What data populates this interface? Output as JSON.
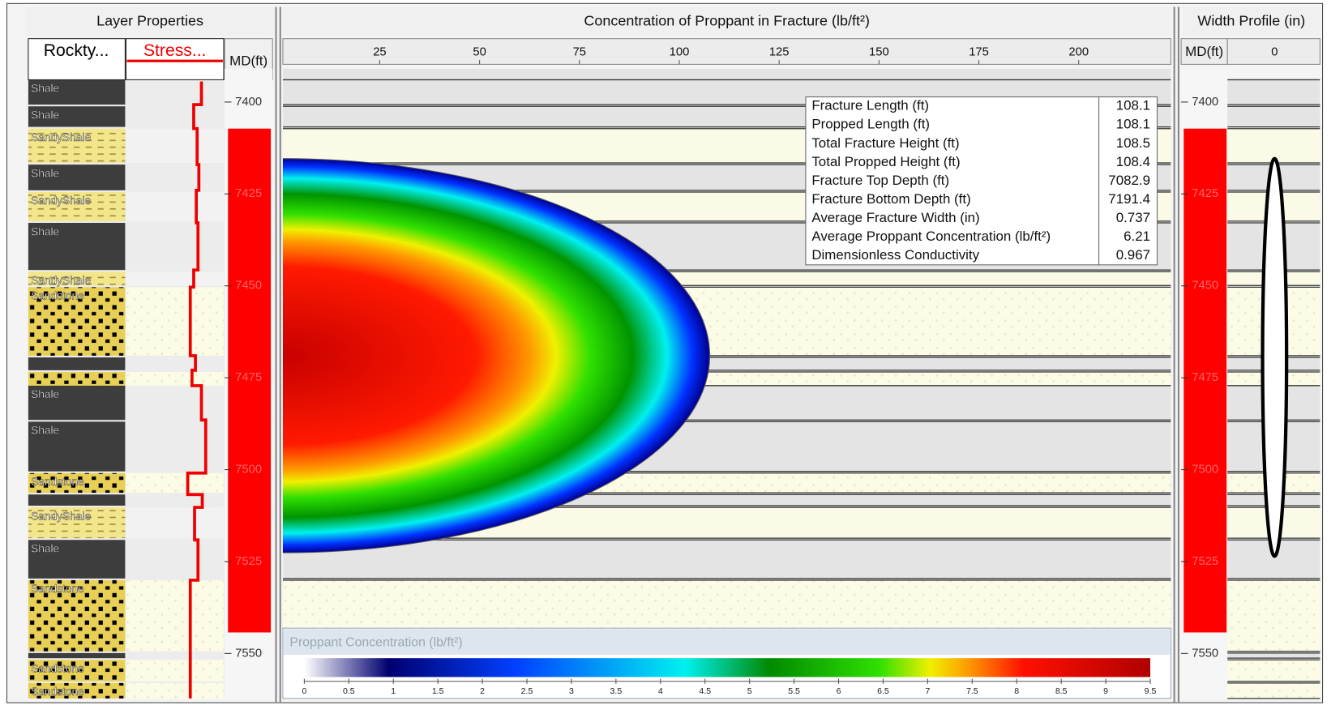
{
  "layer_panel": {
    "title": "Layer Properties",
    "columns": [
      "Rockty...",
      "Stress..."
    ],
    "depth_label": "MD(ft)"
  },
  "concentration_panel": {
    "title": "Concentration of Proppant in Fracture (lb/ft²)",
    "x_ticks": [
      25,
      50,
      75,
      100,
      125,
      150,
      175,
      200
    ]
  },
  "width_panel": {
    "title": "Width Profile (in)",
    "depth_label": "MD(ft)",
    "x_ticks": [
      0
    ]
  },
  "depth_ticks": [
    7400,
    7425,
    7450,
    7475,
    7500,
    7525,
    7550
  ],
  "layers": [
    "Shale",
    "Shale",
    "SandyShale",
    "Shale",
    "SandyShale",
    "Shale",
    "SandyShale",
    "Sandstone",
    "Shale",
    "Shale",
    "Sandstone",
    "SandyShale",
    "Shale",
    "Sandstone",
    "Sandstone",
    "Sandstone"
  ],
  "summary": [
    {
      "label": "Fracture Length (ft)",
      "value": 108.1
    },
    {
      "label": "Propped Length (ft)",
      "value": 108.1
    },
    {
      "label": "Total Fracture Height (ft)",
      "value": 108.5
    },
    {
      "label": "Total Propped Height (ft)",
      "value": 108.4
    },
    {
      "label": "Fracture Top Depth (ft)",
      "value": 7082.9
    },
    {
      "label": "Fracture Bottom Depth (ft)",
      "value": 7191.4
    },
    {
      "label": "Average Fracture Width (in)",
      "value": 0.737
    },
    {
      "label": "Average Proppant Concentration (lb/ft²)",
      "value": 6.21
    },
    {
      "label": "Dimensionless Conductivity",
      "value": 0.967
    }
  ],
  "legend": {
    "title": "Proppant Concentration (lb/ft²)",
    "ticks": [
      0,
      0.5,
      1,
      1.5,
      2,
      2.5,
      3,
      3.5,
      4,
      4.5,
      5,
      5.5,
      6,
      6.5,
      7,
      7.5,
      8,
      8.5,
      9,
      9.5
    ]
  }
}
